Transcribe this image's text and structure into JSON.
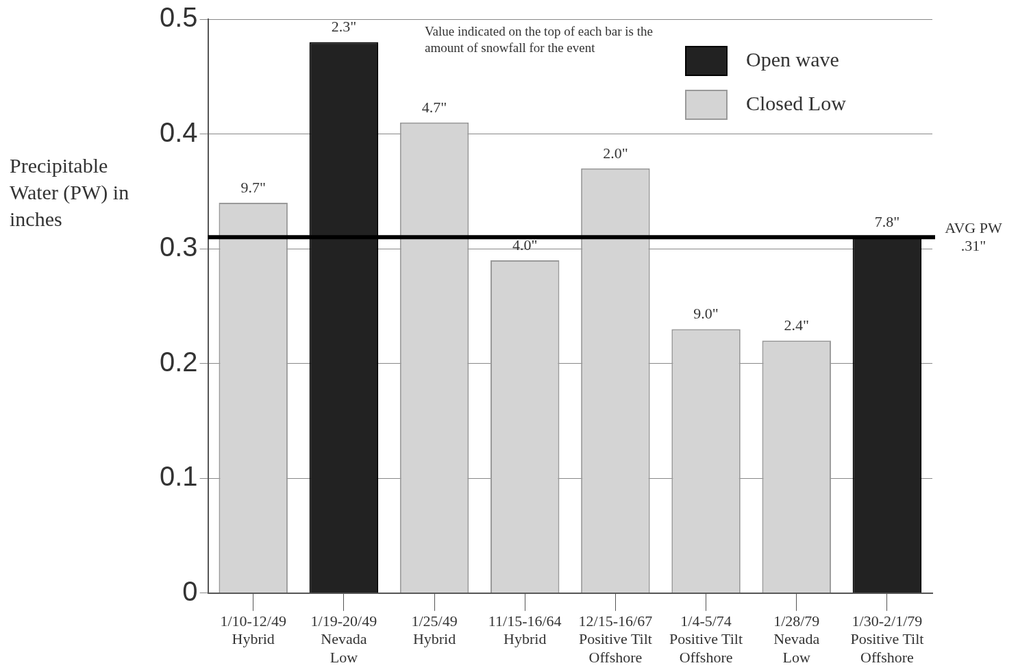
{
  "chart_data": {
    "type": "bar",
    "ylabel": "Precipitable Water (PW) in inches",
    "categories": [
      "1/10-12/49\nHybrid",
      "1/19-20/49\nNevada\nLow",
      "1/25/49\nHybrid",
      "11/15-16/64\nHybrid",
      "12/15-16/67\nPositive Tilt\nOffshore",
      "1/4-5/74\nPositive Tilt\nOffshore",
      "1/28/79\nNevada\nLow",
      "1/30-2/1/79\nPositive Tilt\nOffshore"
    ],
    "series": [
      {
        "name": "Open wave",
        "color": "#222222",
        "values": [
          null,
          0.48,
          null,
          null,
          null,
          null,
          null,
          0.31
        ]
      },
      {
        "name": "Closed Low",
        "color": "#d4d4d4",
        "values": [
          0.34,
          null,
          0.41,
          0.29,
          0.37,
          0.23,
          0.22,
          null
        ]
      }
    ],
    "ylim": [
      0,
      0.5
    ],
    "yticks": [
      0,
      0.1,
      0.2,
      0.3,
      0.4,
      0.5
    ],
    "grid": "y",
    "legend": "top right",
    "ref_lines": [
      {
        "axis": "y",
        "value": 0.31,
        "label": "AVG PW\n.31\"",
        "color": "#000000"
      }
    ],
    "annotations": [
      "Value indicated on the top of each bar is the amount of snowfall for the event",
      {
        "text": "9.7\"",
        "x": "1/10-12/49\nHybrid",
        "y": 0.34
      },
      {
        "text": "2.3\"",
        "x": "1/19-20/49\nNevada\nLow",
        "y": 0.48
      },
      {
        "text": "4.7\"",
        "x": "1/25/49\nHybrid",
        "y": 0.41
      },
      {
        "text": "4.0\"",
        "x": "11/15-16/64\nHybrid",
        "y": 0.29
      },
      {
        "text": "2.0\"",
        "x": "12/15-16/67\nPositive Tilt\nOffshore",
        "y": 0.37
      },
      {
        "text": "9.0\"",
        "x": "1/4-5/74\nPositive Tilt\nOffshore",
        "y": 0.23
      },
      {
        "text": "2.4\"",
        "x": "1/28/79\nNevada\nLow",
        "y": 0.22
      },
      {
        "text": "7.8\"",
        "x": "1/30-2/1/79\nPositive Tilt\nOffshore",
        "y": 0.31
      }
    ]
  }
}
